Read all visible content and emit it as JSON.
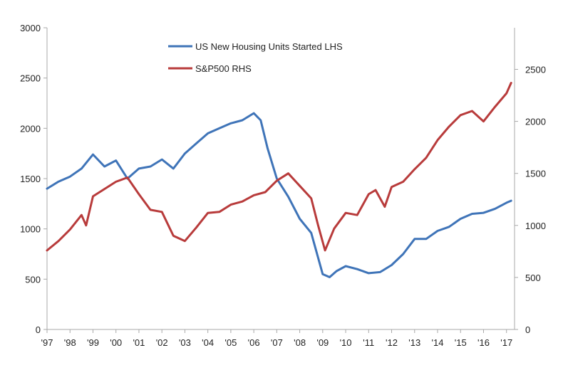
{
  "chart_data": {
    "type": "line",
    "x_tick_labels": [
      "'97",
      "'98",
      "'99",
      "'00",
      "'01",
      "'02",
      "'03",
      "'04",
      "'05",
      "'06",
      "'07",
      "'08",
      "'09",
      "'10",
      "'11",
      "'12",
      "'13",
      "'14",
      "'15",
      "'16",
      "'17"
    ],
    "left_axis": {
      "ylim": [
        0,
        3000
      ],
      "ticks": [
        "0",
        "500",
        "1000",
        "1500",
        "2000",
        "2500",
        "3000"
      ]
    },
    "right_axis": {
      "ylim": [
        0,
        2900
      ],
      "ticks": [
        "0",
        "500",
        "1000",
        "1500",
        "2000",
        "2500"
      ]
    },
    "series": [
      {
        "name": "US New Housing Units Started LHS",
        "axis": "left",
        "color": "#3f74b8",
        "x": [
          1997.0,
          1997.5,
          1998.0,
          1998.5,
          1999.0,
          1999.5,
          2000.0,
          2000.5,
          2001.0,
          2001.5,
          2002.0,
          2002.5,
          2003.0,
          2003.5,
          2004.0,
          2004.5,
          2005.0,
          2005.5,
          2006.0,
          2006.3,
          2006.6,
          2007.0,
          2007.5,
          2008.0,
          2008.5,
          2009.0,
          2009.3,
          2009.6,
          2010.0,
          2010.5,
          2011.0,
          2011.5,
          2012.0,
          2012.5,
          2013.0,
          2013.5,
          2014.0,
          2014.5,
          2015.0,
          2015.5,
          2016.0,
          2016.5,
          2017.0,
          2017.2
        ],
        "values": [
          1400,
          1470,
          1520,
          1600,
          1740,
          1620,
          1680,
          1500,
          1600,
          1620,
          1690,
          1600,
          1750,
          1850,
          1950,
          2000,
          2050,
          2080,
          2150,
          2080,
          1800,
          1500,
          1320,
          1100,
          960,
          550,
          520,
          580,
          630,
          600,
          560,
          570,
          640,
          750,
          900,
          900,
          980,
          1020,
          1100,
          1150,
          1160,
          1200,
          1260,
          1280
        ]
      },
      {
        "name": "S&P500 RHS",
        "axis": "right",
        "color": "#b83b3b",
        "x": [
          1997.0,
          1997.5,
          1998.0,
          1998.5,
          1998.7,
          1999.0,
          1999.5,
          2000.0,
          2000.5,
          2001.0,
          2001.5,
          2002.0,
          2002.5,
          2003.0,
          2003.5,
          2004.0,
          2004.5,
          2005.0,
          2005.5,
          2006.0,
          2006.5,
          2007.0,
          2007.5,
          2008.0,
          2008.5,
          2008.8,
          2009.1,
          2009.5,
          2010.0,
          2010.5,
          2011.0,
          2011.3,
          2011.7,
          2012.0,
          2012.5,
          2013.0,
          2013.5,
          2014.0,
          2014.5,
          2015.0,
          2015.5,
          2016.0,
          2016.5,
          2017.0,
          2017.2
        ],
        "values": [
          760,
          850,
          960,
          1100,
          1000,
          1280,
          1350,
          1420,
          1460,
          1300,
          1150,
          1130,
          900,
          850,
          980,
          1120,
          1130,
          1200,
          1230,
          1290,
          1320,
          1430,
          1500,
          1380,
          1260,
          1000,
          760,
          970,
          1120,
          1100,
          1300,
          1340,
          1180,
          1370,
          1420,
          1540,
          1650,
          1820,
          1950,
          2060,
          2100,
          2000,
          2140,
          2270,
          2370
        ]
      }
    ]
  }
}
